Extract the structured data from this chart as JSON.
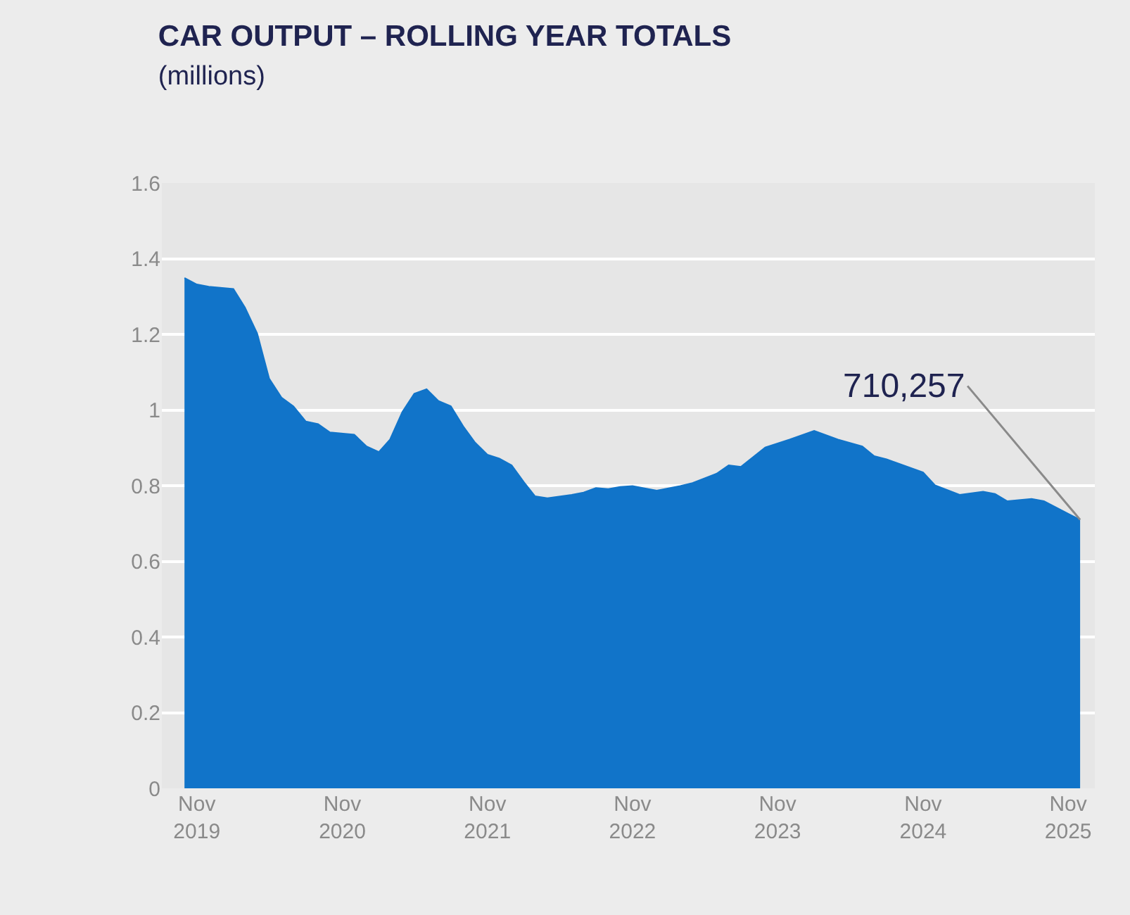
{
  "chart_data": {
    "type": "area",
    "title": "CAR OUTPUT – ROLLING YEAR TOTALS",
    "subtitle": "(millions)",
    "x": [
      "2019-10",
      "2019-11",
      "2019-12",
      "2020-02",
      "2020-03",
      "2020-04",
      "2020-05",
      "2020-06",
      "2020-07",
      "2020-08",
      "2020-09",
      "2020-10",
      "2020-12",
      "2021-01",
      "2021-02",
      "2021-03",
      "2021-04",
      "2021-05",
      "2021-06",
      "2021-07",
      "2021-08",
      "2021-09",
      "2021-10",
      "2021-11",
      "2021-12",
      "2022-01",
      "2022-02",
      "2022-03",
      "2022-04",
      "2022-06",
      "2022-07",
      "2022-08",
      "2022-09",
      "2022-10",
      "2022-11",
      "2023-01",
      "2023-03",
      "2023-04",
      "2023-06",
      "2023-07",
      "2023-08",
      "2023-10",
      "2023-12",
      "2024-02",
      "2024-04",
      "2024-06",
      "2024-07",
      "2024-08",
      "2024-11",
      "2024-12",
      "2025-02",
      "2025-04",
      "2025-05",
      "2025-06",
      "2025-08",
      "2025-09",
      "2025-11",
      "2025-12"
    ],
    "series": [
      {
        "color": "#1174c9",
        "values": [
          1.349,
          1.332,
          1.326,
          1.32,
          1.271,
          1.202,
          1.083,
          1.033,
          1.01,
          0.97,
          0.963,
          0.941,
          0.935,
          0.904,
          0.889,
          0.922,
          0.995,
          1.043,
          1.055,
          1.024,
          1.01,
          0.957,
          0.914,
          0.882,
          0.872,
          0.854,
          0.809,
          0.772,
          0.767,
          0.776,
          0.782,
          0.794,
          0.791,
          0.797,
          0.799,
          0.787,
          0.799,
          0.807,
          0.832,
          0.854,
          0.85,
          0.901,
          0.922,
          0.945,
          0.922,
          0.904,
          0.878,
          0.87,
          0.835,
          0.801,
          0.776,
          0.784,
          0.778,
          0.759,
          0.765,
          0.759,
          0.726,
          0.71
        ]
      }
    ],
    "annotations": [
      {
        "text": "710,257",
        "x": "2025-12",
        "y": 0.71
      }
    ],
    "xlim": [
      "2019-08-05",
      "2026-01-07"
    ],
    "xticks": [
      {
        "value": "2019-11",
        "label": "Nov 2019"
      },
      {
        "value": "2020-11",
        "label": "Nov 2020"
      },
      {
        "value": "2021-11",
        "label": "Nov 2021"
      },
      {
        "value": "2022-11",
        "label": "Nov 2022"
      },
      {
        "value": "2023-11",
        "label": "Nov 2023"
      },
      {
        "value": "2024-11",
        "label": "Nov 2024"
      },
      {
        "value": "2025-11",
        "label": "Nov 2025"
      }
    ],
    "ylim": [
      0,
      1.6
    ],
    "yticks": [
      0,
      0.2,
      0.4,
      0.6,
      0.8,
      1,
      1.2,
      1.4,
      1.6
    ],
    "grid": "y"
  }
}
